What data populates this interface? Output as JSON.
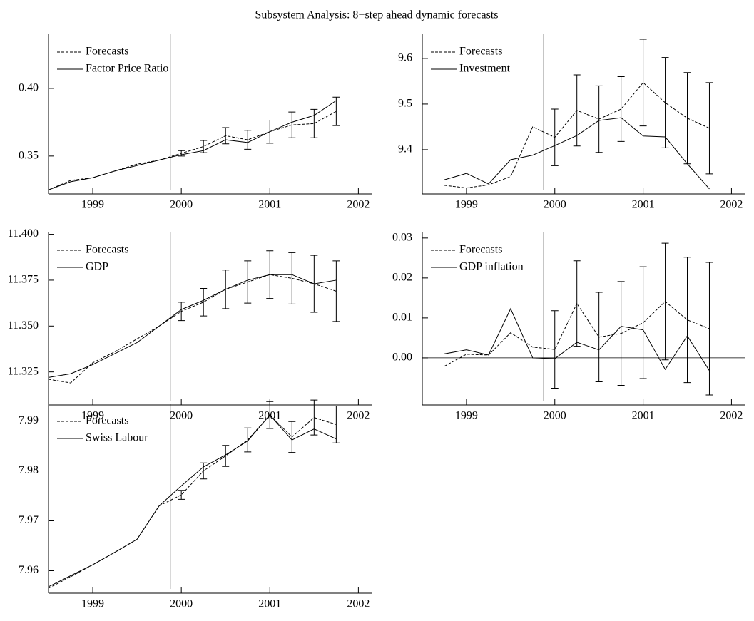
{
  "title": "Subsystem Analysis: 8−step ahead dynamic forecasts",
  "chart_data": [
    {
      "type": "line",
      "x": [
        1998.5,
        1998.75,
        1999,
        1999.25,
        1999.5,
        1999.75,
        2000,
        2000.25,
        2000.5,
        2000.75,
        2001,
        2001.25,
        2001.5,
        2001.75
      ],
      "series": [
        {
          "name": "Forecasts",
          "color": "#000000",
          "style": "dashed",
          "values": [
            0.325,
            0.332,
            0.334,
            0.339,
            0.344,
            0.347,
            0.352,
            0.357,
            0.365,
            0.362,
            0.368,
            0.373,
            0.374,
            0.383
          ],
          "errors": [
            null,
            null,
            null,
            null,
            null,
            null,
            0.002,
            0.0045,
            0.006,
            0.007,
            0.0085,
            0.0095,
            0.0105,
            0.0105
          ]
        },
        {
          "name": "Factor Price Ratio",
          "color": "#000000",
          "style": "solid",
          "values": [
            0.325,
            0.331,
            0.334,
            0.339,
            0.343,
            0.347,
            0.351,
            0.354,
            0.362,
            0.36,
            0.368,
            0.375,
            0.38,
            0.391
          ]
        }
      ],
      "xlim": [
        1998.5,
        2002.15
      ],
      "xticks": [
        1999,
        2000,
        2001,
        2002
      ],
      "ylim": [
        0.322,
        0.44
      ],
      "yticks": [
        0.35,
        {
          "value": 0.4,
          "label": "0.40"
        }
      ],
      "vline": 1999.875
    },
    {
      "type": "line",
      "x": [
        1998.75,
        1999,
        1999.25,
        1999.5,
        1999.75,
        2000,
        2000.25,
        2000.5,
        2000.75,
        2001,
        2001.25,
        2001.5,
        2001.75
      ],
      "series": [
        {
          "name": "Forecasts",
          "color": "#000000",
          "style": "dashed",
          "values": [
            9.322,
            9.316,
            9.323,
            9.341,
            9.45,
            9.427,
            9.486,
            9.467,
            9.489,
            9.547,
            9.503,
            9.469,
            9.447
          ],
          "errors": [
            null,
            null,
            null,
            null,
            null,
            0.062,
            0.078,
            0.073,
            0.071,
            0.095,
            0.099,
            0.1,
            0.1
          ]
        },
        {
          "name": "Investment",
          "color": "#000000",
          "style": "solid",
          "values": [
            9.334,
            9.348,
            9.325,
            9.378,
            9.388,
            9.409,
            9.431,
            9.464,
            9.47,
            9.43,
            9.428,
            9.369,
            9.314
          ]
        }
      ],
      "xlim": [
        1998.5,
        2002.15
      ],
      "xticks": [
        1999,
        2000,
        2001,
        2002
      ],
      "ylim": [
        9.303,
        9.653
      ],
      "yticks": [
        9.4,
        9.5,
        9.6
      ],
      "vline": 1999.875
    },
    {
      "type": "line",
      "x": [
        1998.5,
        1998.75,
        1999,
        1999.25,
        1999.5,
        1999.75,
        2000,
        2000.25,
        2000.5,
        2000.75,
        2001,
        2001.25,
        2001.5,
        2001.75
      ],
      "series": [
        {
          "name": "Forecasts",
          "color": "#000000",
          "style": "dashed",
          "values": [
            11.321,
            11.319,
            11.33,
            11.336,
            11.343,
            11.35,
            11.358,
            11.363,
            11.37,
            11.374,
            11.378,
            11.376,
            11.373,
            11.369
          ],
          "errors": [
            null,
            null,
            null,
            null,
            null,
            null,
            0.005,
            0.0075,
            0.0105,
            0.0115,
            0.013,
            0.014,
            0.0155,
            0.0165
          ]
        },
        {
          "name": "GDP",
          "color": "#000000",
          "style": "solid",
          "values": [
            11.322,
            11.324,
            11.329,
            11.335,
            11.341,
            11.35,
            11.359,
            11.364,
            11.37,
            11.375,
            11.378,
            11.378,
            11.373,
            11.375
          ]
        }
      ],
      "xlim": [
        1998.5,
        2002.15
      ],
      "xticks": [
        1999,
        2000,
        2001,
        2002
      ],
      "ylim": [
        11.307,
        11.401
      ],
      "yticks": [
        11.325,
        {
          "value": 11.35,
          "label": "11.350"
        },
        11.375,
        {
          "value": 11.4,
          "label": "11.400"
        }
      ],
      "vline": 1999.875
    },
    {
      "type": "line",
      "x": [
        1998.75,
        1999,
        1999.25,
        1999.5,
        1999.75,
        2000,
        2000.25,
        2000.5,
        2000.75,
        2001,
        2001.25,
        2001.5,
        2001.75
      ],
      "series": [
        {
          "name": "Forecasts",
          "color": "#000000",
          "style": "dashed",
          "values": [
            -0.0021,
            0.0009,
            0.0007,
            0.0063,
            0.0027,
            0.0021,
            0.0136,
            0.0052,
            0.0061,
            0.0088,
            0.0141,
            0.0095,
            0.0073
          ],
          "errors": [
            null,
            null,
            null,
            null,
            null,
            0.0097,
            0.0107,
            0.0112,
            0.013,
            0.014,
            0.0146,
            0.0157,
            0.0166
          ]
        },
        {
          "name": "GDP inflation",
          "color": "#000000",
          "style": "solid",
          "values": [
            0.001,
            0.002,
            0.0007,
            0.0123,
            0.0,
            -0.0002,
            0.0039,
            0.002,
            0.0079,
            0.007,
            -0.0029,
            0.0055,
            -0.0032
          ]
        }
      ],
      "xlim": [
        1998.5,
        2002.15
      ],
      "xticks": [
        1999,
        2000,
        2001,
        2002
      ],
      "ylim": [
        -0.0118,
        0.0314
      ],
      "yticks": [
        {
          "value": 0,
          "label": "0.00"
        },
        0.01,
        0.02,
        0.03
      ],
      "vline": 1999.875,
      "hline": 0
    },
    {
      "type": "line",
      "x": [
        1998.5,
        1998.75,
        1999,
        1999.25,
        1999.5,
        1999.75,
        2000,
        2000.25,
        2000.5,
        2000.75,
        2001,
        2001.25,
        2001.5,
        2001.75
      ],
      "series": [
        {
          "name": "Forecasts",
          "color": "#000000",
          "style": "dashed",
          "values": [
            7.9565,
            7.9588,
            7.9612,
            7.9637,
            7.9663,
            7.973,
            7.9752,
            7.98,
            7.983,
            7.9862,
            7.9912,
            7.9868,
            7.9907,
            7.9893
          ],
          "errors": [
            null,
            null,
            null,
            null,
            null,
            null,
            0.0009,
            0.0016,
            0.0021,
            0.0024,
            0.0027,
            0.0031,
            0.0035,
            0.0037
          ]
        },
        {
          "name": "Swiss Labour",
          "color": "#000000",
          "style": "solid",
          "values": [
            7.9568,
            7.959,
            7.9612,
            7.9637,
            7.9663,
            7.973,
            7.977,
            7.9808,
            7.9832,
            7.986,
            7.9912,
            7.9862,
            7.9884,
            7.9864
          ]
        }
      ],
      "xlim": [
        1998.5,
        2002.15
      ],
      "xticks": [
        1999,
        2000,
        2001,
        2002
      ],
      "ylim": [
        7.9555,
        7.9935
      ],
      "yticks": [
        7.96,
        7.97,
        7.98,
        7.99
      ],
      "vline": 1999.875
    }
  ]
}
